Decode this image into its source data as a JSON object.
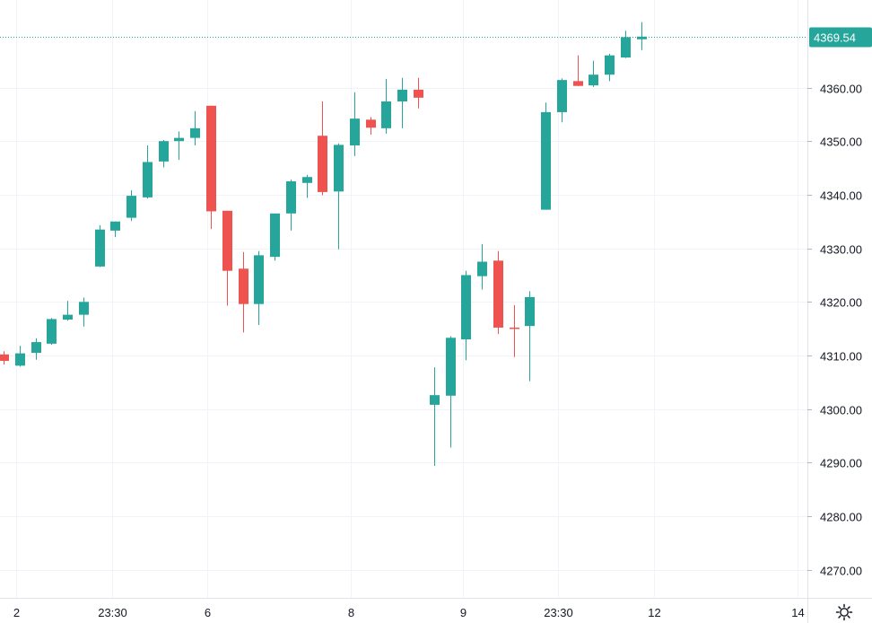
{
  "chart_data": {
    "type": "candlestick",
    "ylim": [
      4263,
      4374
    ],
    "y_ticks": [
      "4270.00",
      "4280.00",
      "4290.00",
      "4300.00",
      "4310.00",
      "4320.00",
      "4330.00",
      "4340.00",
      "4350.00",
      "4360.00"
    ],
    "y_tick_values": [
      4270,
      4280,
      4290,
      4300,
      4310,
      4320,
      4330,
      4340,
      4350,
      4360
    ],
    "x_ticks": [
      {
        "label": "2",
        "index": 0.8
      },
      {
        "label": "23:30",
        "index": 6.8
      },
      {
        "label": "6",
        "index": 12.8
      },
      {
        "label": "8",
        "index": 21.8
      },
      {
        "label": "9",
        "index": 28.8
      },
      {
        "label": "23:30",
        "index": 34.8
      },
      {
        "label": "12",
        "index": 40.8
      },
      {
        "label": "14",
        "index": 49.8
      }
    ],
    "last_price": 4369.54,
    "last_price_label": "4369.54",
    "colors": {
      "up": "#26a69a",
      "down": "#ef5350",
      "grid": "#f0f3fa",
      "axis": "#e0e3eb",
      "price_line": "#26a69a"
    },
    "candles": [
      {
        "i": 0,
        "o": 4310.2,
        "h": 4310.8,
        "l": 4308.3,
        "c": 4309.0
      },
      {
        "i": 1,
        "o": 4308.1,
        "h": 4311.8,
        "l": 4307.9,
        "c": 4310.4
      },
      {
        "i": 2,
        "o": 4310.5,
        "h": 4313.2,
        "l": 4309.2,
        "c": 4312.5
      },
      {
        "i": 3,
        "o": 4312.2,
        "h": 4317.0,
        "l": 4312.0,
        "c": 4316.8
      },
      {
        "i": 4,
        "o": 4316.7,
        "h": 4320.2,
        "l": 4316.5,
        "c": 4317.6
      },
      {
        "i": 5,
        "o": 4317.6,
        "h": 4320.8,
        "l": 4315.4,
        "c": 4320.0
      },
      {
        "i": 6,
        "o": 4326.6,
        "h": 4334.3,
        "l": 4326.5,
        "c": 4333.5
      },
      {
        "i": 7,
        "o": 4333.3,
        "h": 4335.0,
        "l": 4332.1,
        "c": 4335.0
      },
      {
        "i": 8,
        "o": 4335.7,
        "h": 4340.8,
        "l": 4335.1,
        "c": 4339.8
      },
      {
        "i": 9,
        "o": 4339.5,
        "h": 4349.2,
        "l": 4339.3,
        "c": 4346.1
      },
      {
        "i": 10,
        "o": 4346.2,
        "h": 4350.2,
        "l": 4345.1,
        "c": 4350.0
      },
      {
        "i": 11,
        "o": 4350.0,
        "h": 4351.8,
        "l": 4346.5,
        "c": 4350.6
      },
      {
        "i": 12,
        "o": 4350.6,
        "h": 4355.6,
        "l": 4349.2,
        "c": 4352.4
      },
      {
        "i": 13,
        "o": 4356.6,
        "h": 4356.6,
        "l": 4333.6,
        "c": 4336.9
      },
      {
        "i": 14,
        "o": 4337.0,
        "h": 4337.0,
        "l": 4319.3,
        "c": 4325.8
      },
      {
        "i": 15,
        "o": 4326.2,
        "h": 4329.3,
        "l": 4314.3,
        "c": 4319.6
      },
      {
        "i": 16,
        "o": 4319.6,
        "h": 4329.5,
        "l": 4315.7,
        "c": 4328.7
      },
      {
        "i": 17,
        "o": 4328.4,
        "h": 4336.5,
        "l": 4327.7,
        "c": 4336.5
      },
      {
        "i": 18,
        "o": 4336.5,
        "h": 4342.8,
        "l": 4333.3,
        "c": 4342.5
      },
      {
        "i": 19,
        "o": 4342.2,
        "h": 4343.7,
        "l": 4339.4,
        "c": 4343.3
      },
      {
        "i": 20,
        "o": 4351.0,
        "h": 4357.4,
        "l": 4339.9,
        "c": 4340.5
      },
      {
        "i": 21,
        "o": 4340.6,
        "h": 4349.6,
        "l": 4329.8,
        "c": 4349.3
      },
      {
        "i": 22,
        "o": 4349.2,
        "h": 4359.1,
        "l": 4347.2,
        "c": 4354.2
      },
      {
        "i": 23,
        "o": 4354.0,
        "h": 4354.5,
        "l": 4351.2,
        "c": 4352.5
      },
      {
        "i": 24,
        "o": 4352.4,
        "h": 4361.6,
        "l": 4351.4,
        "c": 4357.4
      },
      {
        "i": 25,
        "o": 4357.4,
        "h": 4361.8,
        "l": 4352.4,
        "c": 4359.6
      },
      {
        "i": 26,
        "o": 4359.6,
        "h": 4361.8,
        "l": 4356.1,
        "c": 4358.1
      },
      {
        "i": 27,
        "o": 4300.8,
        "h": 4307.8,
        "l": 4289.4,
        "c": 4302.6
      },
      {
        "i": 28,
        "o": 4302.5,
        "h": 4313.6,
        "l": 4292.8,
        "c": 4313.3
      },
      {
        "i": 29,
        "o": 4313.0,
        "h": 4325.8,
        "l": 4309.1,
        "c": 4325.0
      },
      {
        "i": 30,
        "o": 4324.8,
        "h": 4330.8,
        "l": 4322.3,
        "c": 4327.5
      },
      {
        "i": 31,
        "o": 4327.7,
        "h": 4329.5,
        "l": 4314.0,
        "c": 4315.2
      },
      {
        "i": 32,
        "o": 4315.2,
        "h": 4319.4,
        "l": 4309.7,
        "c": 4315.1
      },
      {
        "i": 33,
        "o": 4315.5,
        "h": 4322.0,
        "l": 4305.2,
        "c": 4320.9
      },
      {
        "i": 34,
        "o": 4337.2,
        "h": 4357.2,
        "l": 4337.2,
        "c": 4355.4
      },
      {
        "i": 35,
        "o": 4355.4,
        "h": 4361.7,
        "l": 4353.5,
        "c": 4361.4
      },
      {
        "i": 36,
        "o": 4361.2,
        "h": 4366.0,
        "l": 4360.3,
        "c": 4360.3
      },
      {
        "i": 37,
        "o": 4360.4,
        "h": 4365.0,
        "l": 4360.1,
        "c": 4362.4
      },
      {
        "i": 38,
        "o": 4362.4,
        "h": 4366.3,
        "l": 4361.2,
        "c": 4366.0
      },
      {
        "i": 39,
        "o": 4365.6,
        "h": 4370.6,
        "l": 4365.5,
        "c": 4369.4
      },
      {
        "i": 40,
        "o": 4369.0,
        "h": 4372.2,
        "l": 4367.0,
        "c": 4369.5
      }
    ]
  },
  "icons": {
    "settings": "gear-icon"
  }
}
